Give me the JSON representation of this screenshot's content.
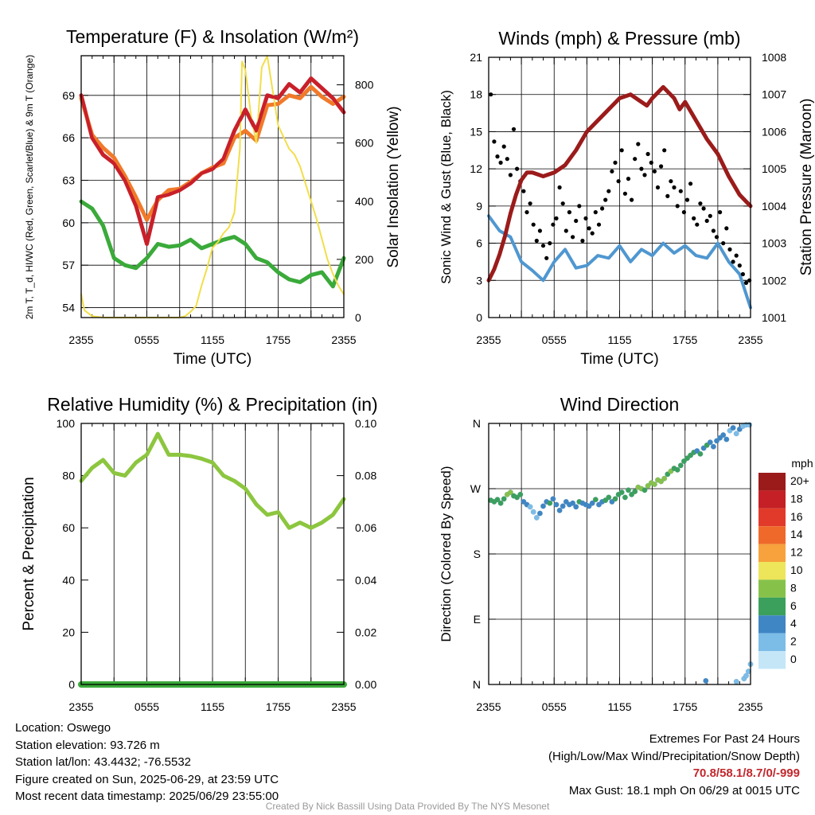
{
  "chart_data": [
    {
      "type": "line",
      "title": "Temperature (F) & Insolation (W/m²)",
      "xlabel": "Time (UTC)",
      "ylabel": "2m T, T_d, HI/WC (Red, Green, Scarlet/Blue) & 9m T (Orange)",
      "ylabel_right": "Solar Insolation (Yellow)",
      "x_ticks": [
        "2355",
        "0555",
        "1155",
        "1755",
        "2355"
      ],
      "ylim": [
        53.3,
        71.8
      ],
      "y_ticks": [
        54,
        57,
        60,
        63,
        66,
        69
      ],
      "ylim_right": [
        0,
        900
      ],
      "y_ticks_right": [
        0,
        200,
        400,
        600,
        800
      ],
      "grid": true,
      "series": [
        {
          "name": "2m T",
          "color": "#c8202a",
          "axis": "left",
          "x": [
            0,
            1,
            2,
            3,
            4,
            5,
            6,
            7,
            8,
            9,
            10,
            11,
            12,
            13,
            14,
            15,
            16,
            17,
            18,
            19,
            20,
            21,
            22,
            23,
            24
          ],
          "values": [
            69.0,
            66.0,
            64.8,
            64.2,
            63.0,
            61.2,
            58.5,
            61.8,
            62.0,
            62.3,
            62.8,
            63.5,
            63.8,
            64.5,
            66.5,
            68.0,
            66.5,
            69.0,
            68.8,
            69.8,
            69.2,
            70.2,
            69.5,
            68.8,
            67.8
          ]
        },
        {
          "name": "9m T",
          "color": "#f07a2a",
          "axis": "left",
          "x": [
            0,
            1,
            2,
            3,
            4,
            5,
            6,
            7,
            8,
            9,
            10,
            11,
            12,
            13,
            14,
            15,
            16,
            17,
            18,
            19,
            20,
            21,
            22,
            23,
            24
          ],
          "values": [
            68.8,
            66.2,
            65.3,
            64.6,
            63.3,
            61.8,
            60.2,
            61.6,
            62.3,
            62.4,
            62.9,
            63.5,
            63.9,
            64.2,
            66.0,
            66.5,
            65.8,
            68.3,
            68.4,
            69.0,
            68.8,
            69.6,
            68.9,
            68.4,
            68.9
          ]
        },
        {
          "name": "2m Td",
          "color": "#3aaa3a",
          "axis": "left",
          "x": [
            0,
            1,
            2,
            3,
            4,
            5,
            6,
            7,
            8,
            9,
            10,
            11,
            12,
            13,
            14,
            15,
            16,
            17,
            18,
            19,
            20,
            21,
            22,
            23,
            24
          ],
          "values": [
            61.5,
            61.0,
            59.8,
            57.5,
            57.0,
            56.8,
            57.5,
            58.5,
            58.3,
            58.4,
            58.8,
            58.2,
            58.5,
            58.8,
            59.0,
            58.5,
            57.5,
            57.2,
            56.5,
            56.0,
            55.8,
            56.3,
            56.5,
            55.5,
            57.5
          ]
        },
        {
          "name": "Solar Insolation",
          "color": "#f2de4a",
          "axis": "right",
          "x": [
            0,
            0.3,
            1,
            2,
            3,
            4,
            5,
            6,
            7,
            8,
            9,
            9.5,
            10,
            10.5,
            11,
            11.5,
            12,
            12.5,
            13,
            13.5,
            14,
            14.5,
            14.7,
            15,
            15.5,
            16,
            16.5,
            17,
            17.5,
            18,
            18.5,
            19,
            19.5,
            20,
            20.5,
            21,
            21.5,
            22,
            22.5,
            23,
            23.5,
            24
          ],
          "values": [
            80,
            25,
            5,
            0,
            0,
            0,
            0,
            0,
            0,
            0,
            0,
            5,
            20,
            40,
            110,
            170,
            240,
            260,
            290,
            310,
            360,
            580,
            880,
            850,
            700,
            600,
            860,
            900,
            780,
            660,
            620,
            580,
            560,
            520,
            460,
            400,
            340,
            270,
            200,
            150,
            110,
            80
          ]
        }
      ]
    },
    {
      "type": "line",
      "title": "Winds (mph) & Pressure (mb)",
      "xlabel": "Time (UTC)",
      "ylabel": "Sonic Wind & Gust (Blue, Black)",
      "ylabel_right": "Station Pressure (Maroon)",
      "x_ticks": [
        "2355",
        "0555",
        "1155",
        "1755",
        "2355"
      ],
      "ylim": [
        0,
        21
      ],
      "y_ticks": [
        0,
        3,
        6,
        9,
        12,
        15,
        18,
        21
      ],
      "ylim_right": [
        1001,
        1008
      ],
      "y_ticks_right": [
        1001,
        1002,
        1003,
        1004,
        1005,
        1006,
        1007,
        1008
      ],
      "grid": true,
      "series": [
        {
          "name": "Wind",
          "color": "#4f97d0",
          "axis": "left",
          "x": [
            0,
            1,
            2,
            3,
            4,
            5,
            6,
            7,
            8,
            9,
            10,
            11,
            12,
            13,
            14,
            15,
            16,
            17,
            18,
            19,
            20,
            21,
            22,
            23,
            24
          ],
          "values": [
            8.2,
            7.0,
            6.5,
            4.5,
            3.8,
            3.0,
            4.5,
            5.5,
            4.0,
            4.2,
            5.0,
            4.8,
            5.8,
            4.5,
            5.5,
            5.0,
            6.0,
            5.2,
            5.8,
            5.0,
            4.8,
            6.0,
            4.5,
            3.5,
            0.8
          ]
        },
        {
          "name": "Gust",
          "color": "#000000",
          "axis": "left",
          "style": "points",
          "x": [
            0.2,
            0.5,
            0.8,
            1.1,
            1.4,
            1.7,
            2.0,
            2.3,
            2.6,
            2.9,
            3.2,
            3.5,
            3.8,
            4.1,
            4.4,
            4.7,
            5.0,
            5.3,
            5.6,
            5.9,
            6.2,
            6.5,
            6.8,
            7.1,
            7.4,
            7.7,
            8.0,
            8.3,
            8.6,
            8.9,
            9.2,
            9.5,
            9.8,
            10.1,
            10.4,
            10.7,
            11.0,
            11.3,
            11.6,
            11.9,
            12.2,
            12.5,
            12.8,
            13.1,
            13.4,
            13.7,
            14.0,
            14.3,
            14.6,
            14.9,
            15.2,
            15.5,
            15.8,
            16.1,
            16.4,
            16.7,
            17.0,
            17.3,
            17.6,
            17.9,
            18.2,
            18.5,
            18.8,
            19.1,
            19.4,
            19.7,
            20.0,
            20.3,
            20.6,
            20.9,
            21.2,
            21.5,
            21.8,
            22.1,
            22.4,
            22.7,
            23.0,
            23.3,
            23.6,
            23.9
          ],
          "values": [
            18.0,
            14.2,
            13.0,
            12.5,
            13.8,
            12.8,
            11.5,
            15.2,
            12.0,
            11.0,
            10.2,
            8.5,
            9.2,
            7.5,
            6.2,
            7.0,
            5.8,
            4.8,
            6.0,
            7.5,
            8.0,
            10.5,
            9.2,
            7.0,
            8.5,
            6.5,
            7.8,
            9.0,
            6.2,
            8.0,
            7.2,
            6.8,
            8.5,
            7.5,
            8.8,
            9.5,
            10.2,
            11.8,
            12.5,
            11.0,
            13.5,
            10.0,
            11.2,
            9.5,
            12.8,
            14.0,
            12.0,
            11.5,
            13.2,
            12.5,
            11.8,
            10.5,
            12.2,
            13.5,
            9.8,
            11.0,
            10.5,
            9.0,
            10.2,
            8.5,
            9.5,
            10.8,
            8.0,
            7.5,
            9.2,
            8.8,
            7.8,
            8.2,
            7.0,
            6.5,
            8.5,
            6.0,
            7.2,
            5.5,
            4.5,
            5.0,
            4.2,
            3.5,
            2.8,
            3.0
          ]
        },
        {
          "name": "Station Pressure",
          "color": "#9b1b1b",
          "axis": "right",
          "x": [
            0,
            0.5,
            1,
            1.5,
            2,
            2.5,
            3,
            3.5,
            4,
            5,
            6,
            7,
            8,
            9,
            10,
            11,
            12,
            13,
            14,
            14.5,
            15,
            16,
            17,
            17.5,
            18,
            19,
            20,
            21,
            22,
            23,
            24
          ],
          "values": [
            1002.0,
            1002.3,
            1002.7,
            1003.2,
            1003.8,
            1004.3,
            1004.7,
            1004.9,
            1004.9,
            1004.8,
            1004.9,
            1005.1,
            1005.5,
            1006.0,
            1006.3,
            1006.6,
            1006.9,
            1007.0,
            1006.8,
            1006.7,
            1006.9,
            1007.2,
            1006.9,
            1006.6,
            1006.8,
            1006.3,
            1005.8,
            1005.4,
            1004.8,
            1004.3,
            1004.0
          ]
        }
      ]
    },
    {
      "type": "line",
      "title": "Relative Humidity (%) & Precipitation (in)",
      "xlabel": "",
      "ylabel": "Percent & Precipitation",
      "ylabel_right": "",
      "x_ticks": [
        "2355",
        "0555",
        "1155",
        "1755",
        "2355"
      ],
      "ylim": [
        0,
        100
      ],
      "y_ticks": [
        0,
        20,
        40,
        60,
        80,
        100
      ],
      "ylim_right": [
        0,
        0.1
      ],
      "y_ticks_right": [
        "0.00",
        "0.02",
        "0.04",
        "0.06",
        "0.08",
        "0.10"
      ],
      "grid": true,
      "series": [
        {
          "name": "RH",
          "color": "#8cc63f",
          "axis": "left",
          "x": [
            0,
            1,
            2,
            3,
            4,
            5,
            6,
            7,
            8,
            9,
            10,
            11,
            12,
            13,
            14,
            15,
            16,
            17,
            18,
            19,
            20,
            21,
            22,
            23,
            24
          ],
          "values": [
            78,
            83,
            86,
            81,
            80,
            85,
            88,
            96,
            88,
            88,
            87.5,
            86.5,
            85,
            80,
            78,
            75,
            69,
            65,
            66,
            60,
            62,
            60,
            62,
            65,
            71
          ]
        },
        {
          "name": "Precipitation",
          "color": "#3aaa3a",
          "axis": "right",
          "x": [
            0,
            24
          ],
          "values": [
            0,
            0
          ]
        }
      ]
    },
    {
      "type": "scatter",
      "title": "Wind Direction",
      "xlabel": "",
      "ylabel": "Direction (Colored By Speed)",
      "x_ticks": [
        "2355",
        "0555",
        "1155",
        "1755",
        "2355"
      ],
      "y_ticks": [
        "N",
        "E",
        "S",
        "W",
        "N"
      ],
      "ylim": [
        0,
        360
      ],
      "grid": true,
      "colorbar": {
        "title": "mph",
        "labels": [
          "0",
          "2",
          "4",
          "6",
          "8",
          "10",
          "12",
          "14",
          "16",
          "18",
          "20+"
        ],
        "colors": [
          "#c4e6f7",
          "#7cbde8",
          "#3f86c4",
          "#3aa05c",
          "#86c24a",
          "#ede55a",
          "#f7a23d",
          "#ef6a2a",
          "#e23a2a",
          "#c42025",
          "#9b1b1b"
        ]
      },
      "points": {
        "x": [
          0.2,
          0.5,
          0.8,
          1.1,
          1.4,
          1.7,
          2.0,
          2.3,
          2.6,
          2.9,
          3.2,
          3.5,
          3.8,
          4.1,
          4.4,
          4.7,
          5.0,
          5.3,
          5.6,
          5.9,
          6.2,
          6.5,
          6.8,
          7.1,
          7.4,
          7.7,
          8.0,
          8.3,
          8.6,
          8.9,
          9.2,
          9.5,
          9.8,
          10.1,
          10.4,
          10.7,
          11.0,
          11.3,
          11.6,
          11.9,
          12.2,
          12.5,
          12.8,
          13.1,
          13.4,
          13.7,
          14.0,
          14.3,
          14.6,
          14.9,
          15.2,
          15.5,
          15.8,
          16.1,
          16.4,
          16.7,
          17.0,
          17.3,
          17.6,
          17.9,
          18.2,
          18.5,
          18.8,
          19.1,
          19.4,
          19.7,
          20.0,
          20.3,
          20.6,
          20.9,
          21.2,
          21.5,
          21.8,
          22.1,
          22.4,
          22.7,
          23.0,
          23.3,
          23.6,
          23.9,
          19.9,
          22.7,
          23.4,
          23.6,
          23.8,
          24.0
        ],
        "y": [
          254,
          252,
          255,
          250,
          256,
          262,
          265,
          260,
          258,
          262,
          252,
          248,
          245,
          238,
          230,
          236,
          246,
          252,
          250,
          256,
          248,
          240,
          246,
          252,
          248,
          250,
          245,
          252,
          250,
          248,
          246,
          250,
          255,
          248,
          252,
          254,
          258,
          252,
          256,
          262,
          265,
          258,
          268,
          262,
          266,
          272,
          270,
          268,
          274,
          278,
          276,
          282,
          280,
          284,
          290,
          294,
          298,
          296,
          302,
          308,
          312,
          316,
          320,
          322,
          318,
          326,
          330,
          334,
          328,
          336,
          340,
          344,
          338,
          350,
          354,
          346,
          352,
          356,
          358,
          358,
          5,
          4,
          8,
          12,
          18,
          28
        ],
        "speed": [
          5,
          5,
          6,
          5,
          6,
          7,
          7,
          6,
          5,
          5,
          4,
          3,
          2,
          2,
          2,
          3,
          4,
          4,
          5,
          4,
          4,
          3,
          4,
          4,
          3,
          4,
          4,
          5,
          4,
          4,
          3,
          4,
          5,
          4,
          4,
          5,
          5,
          4,
          5,
          6,
          6,
          5,
          6,
          5,
          6,
          7,
          7,
          6,
          7,
          8,
          7,
          8,
          7,
          8,
          6,
          7,
          6,
          5,
          6,
          5,
          6,
          5,
          5,
          4,
          5,
          4,
          5,
          4,
          3,
          4,
          3,
          4,
          3,
          2,
          3,
          2,
          3,
          2,
          2,
          1,
          4,
          2,
          1,
          2,
          1,
          1
        ]
      }
    }
  ],
  "info": {
    "location": "Location: Oswego",
    "elevation": "Station elevation: 93.726 m",
    "latlon": "Station lat/lon: 43.4432; -76.5532",
    "created": "Figure created on Sun, 2025-06-29, at 23:59 UTC",
    "recent": "Most recent data timestamp: 2025/06/29 23:55:00"
  },
  "extremes": {
    "title": "Extremes For Past 24 Hours",
    "subtitle": "(High/Low/Max Wind/Precipitation/Snow Depth)",
    "values": "70.8/58.1/8.7/0/-999",
    "max_gust": "Max Gust: 18.1 mph On 06/29 at 0015 UTC"
  },
  "credit": "Created By Nick Bassill Using Data Provided By The NYS Mesonet"
}
